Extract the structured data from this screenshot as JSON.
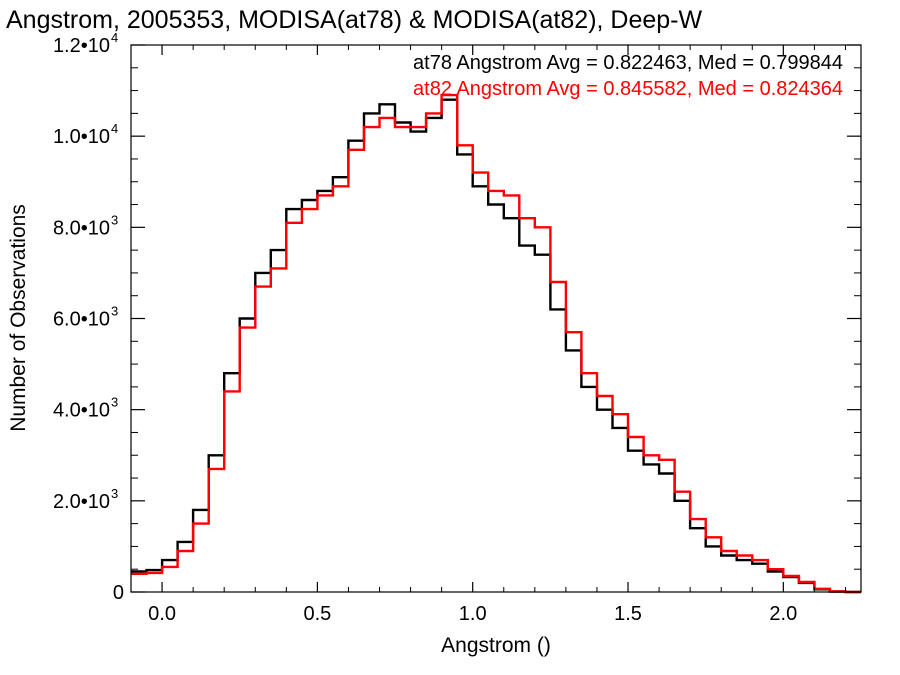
{
  "chart_data": {
    "type": "line",
    "title": "Angstrom, 2005353, MODISA(at78) & MODISA(at82), Deep-W",
    "xlabel": "Angstrom ()",
    "ylabel": "Number of Observations",
    "xlim": [
      -0.1,
      2.25
    ],
    "ylim": [
      0,
      12000
    ],
    "x_ticks": [
      {
        "value": 0.0,
        "label": "0.0"
      },
      {
        "value": 0.5,
        "label": "0.5"
      },
      {
        "value": 1.0,
        "label": "1.0"
      },
      {
        "value": 1.5,
        "label": "1.5"
      },
      {
        "value": 2.0,
        "label": "2.0"
      }
    ],
    "y_ticks": [
      {
        "value": 0,
        "label": "0",
        "exp": ""
      },
      {
        "value": 2000,
        "label": "2.0•10",
        "exp": "3"
      },
      {
        "value": 4000,
        "label": "4.0•10",
        "exp": "3"
      },
      {
        "value": 6000,
        "label": "6.0•10",
        "exp": "3"
      },
      {
        "value": 8000,
        "label": "8.0•10",
        "exp": "3"
      },
      {
        "value": 10000,
        "label": "1.0•10",
        "exp": "4"
      },
      {
        "value": 12000,
        "label": "1.2•10",
        "exp": "4"
      }
    ],
    "grid": false,
    "legend": {
      "placement": "top-right",
      "entries": [
        {
          "text": "at78 Angstrom Avg = 0.822463, Med = 0.799844",
          "color": "#000000"
        },
        {
          "text": "at82 Angstrom Avg = 0.845582, Med = 0.824364",
          "color": "#ff0000"
        }
      ]
    },
    "series": [
      {
        "name": "at78",
        "color": "#000000",
        "x": [
          -0.1,
          -0.05,
          0.0,
          0.05,
          0.1,
          0.15,
          0.2,
          0.25,
          0.3,
          0.35,
          0.4,
          0.45,
          0.5,
          0.55,
          0.6,
          0.65,
          0.7,
          0.75,
          0.8,
          0.85,
          0.9,
          0.95,
          1.0,
          1.05,
          1.1,
          1.15,
          1.2,
          1.25,
          1.3,
          1.35,
          1.4,
          1.45,
          1.5,
          1.55,
          1.6,
          1.65,
          1.7,
          1.75,
          1.8,
          1.85,
          1.9,
          1.95,
          2.0,
          2.05,
          2.1,
          2.15,
          2.2,
          2.25
        ],
        "y": [
          450,
          480,
          700,
          1100,
          1800,
          3000,
          4800,
          6000,
          7000,
          7500,
          8400,
          8600,
          8800,
          9100,
          9900,
          10500,
          10700,
          10300,
          10100,
          10400,
          10800,
          9600,
          8900,
          8500,
          8200,
          7600,
          7400,
          6200,
          5300,
          4500,
          4000,
          3600,
          3100,
          2800,
          2600,
          2000,
          1400,
          1000,
          800,
          700,
          620,
          450,
          330,
          200,
          60,
          10,
          0,
          0
        ]
      },
      {
        "name": "at82",
        "color": "#ff0000",
        "x": [
          -0.1,
          -0.05,
          0.0,
          0.05,
          0.1,
          0.15,
          0.2,
          0.25,
          0.3,
          0.35,
          0.4,
          0.45,
          0.5,
          0.55,
          0.6,
          0.65,
          0.7,
          0.75,
          0.8,
          0.85,
          0.9,
          0.95,
          1.0,
          1.05,
          1.1,
          1.15,
          1.2,
          1.25,
          1.3,
          1.35,
          1.4,
          1.45,
          1.5,
          1.55,
          1.6,
          1.65,
          1.7,
          1.75,
          1.8,
          1.85,
          1.9,
          1.95,
          2.0,
          2.05,
          2.1,
          2.15,
          2.2,
          2.25
        ],
        "y": [
          400,
          420,
          550,
          900,
          1500,
          2700,
          4400,
          5800,
          6700,
          7100,
          8100,
          8400,
          8700,
          8900,
          9700,
          10200,
          10400,
          10200,
          10200,
          10500,
          10900,
          9800,
          9200,
          8800,
          8700,
          8200,
          8000,
          6800,
          5700,
          4800,
          4300,
          3900,
          3400,
          3000,
          2900,
          2200,
          1600,
          1200,
          900,
          800,
          700,
          500,
          350,
          220,
          70,
          10,
          0,
          0
        ]
      }
    ]
  }
}
